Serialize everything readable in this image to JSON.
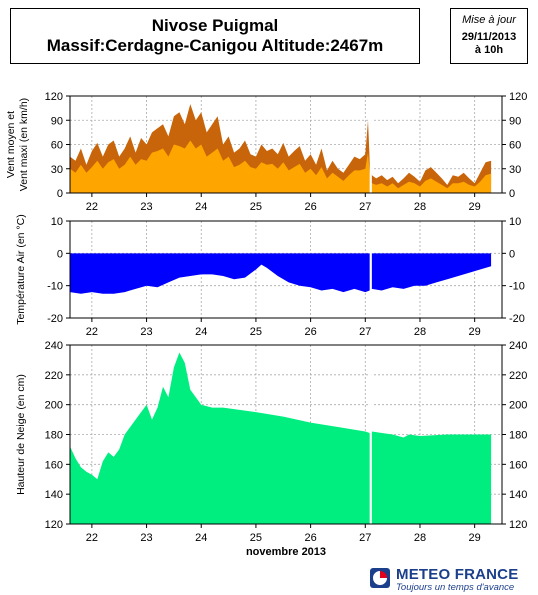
{
  "header": {
    "station": "Nivose Puigmal",
    "massif_line": "Massif:Cerdagne-Canigou Altitude:2467m",
    "update_label": "Mise à jour",
    "update_date": "29/11/2013",
    "update_time": "à 10h"
  },
  "footer": {
    "brand": "METEO FRANCE",
    "tagline": "Toujours un temps d'avance"
  },
  "colors": {
    "gust": "#c8650a",
    "mean_wind": "#ffa500",
    "temperature": "#0000ff",
    "snow": "#00ee80",
    "grid": "#aaaaaa"
  },
  "chart_data": [
    {
      "type": "area",
      "id": "wind",
      "ylabel": "Vent moyen et Vent maxi (en km/h)",
      "ylim": [
        0,
        120
      ],
      "yticks": [
        0,
        30,
        60,
        90,
        120
      ],
      "x_ticks": [
        "22",
        "23",
        "24",
        "25",
        "26",
        "27",
        "28",
        "29"
      ],
      "x_day_values": [
        22,
        23,
        24,
        25,
        26,
        27,
        28,
        29
      ],
      "xlim": [
        21.6,
        29.5
      ],
      "grid": true,
      "gap": [
        27.08,
        27.12
      ],
      "series": [
        {
          "role": "max",
          "x": [
            21.6,
            21.7,
            21.8,
            21.9,
            22.0,
            22.1,
            22.2,
            22.3,
            22.4,
            22.5,
            22.6,
            22.7,
            22.8,
            22.9,
            23.0,
            23.1,
            23.2,
            23.3,
            23.4,
            23.5,
            23.6,
            23.7,
            23.8,
            23.9,
            24.0,
            24.1,
            24.2,
            24.3,
            24.4,
            24.5,
            24.6,
            24.7,
            24.8,
            24.9,
            25.0,
            25.1,
            25.2,
            25.3,
            25.4,
            25.5,
            25.6,
            25.7,
            25.8,
            25.9,
            26.0,
            26.1,
            26.2,
            26.3,
            26.4,
            26.5,
            26.6,
            26.7,
            26.8,
            26.9,
            27.0,
            27.05,
            27.08,
            27.12,
            27.2,
            27.3,
            27.4,
            27.5,
            27.6,
            27.7,
            27.8,
            27.9,
            28.0,
            28.1,
            28.2,
            28.3,
            28.4,
            28.5,
            28.6,
            28.7,
            28.8,
            28.9,
            29.0,
            29.1,
            29.2,
            29.3
          ],
          "values": [
            45,
            40,
            55,
            35,
            52,
            62,
            45,
            60,
            65,
            45,
            55,
            70,
            50,
            68,
            60,
            75,
            80,
            85,
            70,
            95,
            100,
            85,
            110,
            90,
            100,
            75,
            85,
            95,
            60,
            70,
            50,
            55,
            65,
            48,
            45,
            60,
            52,
            55,
            48,
            62,
            45,
            52,
            58,
            40,
            48,
            35,
            55,
            28,
            40,
            30,
            25,
            35,
            45,
            42,
            48,
            90,
            40,
            22,
            18,
            22,
            16,
            20,
            12,
            18,
            25,
            20,
            14,
            28,
            32,
            25,
            18,
            10,
            22,
            20,
            25,
            18,
            12,
            25,
            38,
            40
          ]
        },
        {
          "role": "mean",
          "x": [
            21.6,
            21.7,
            21.8,
            21.9,
            22.0,
            22.1,
            22.2,
            22.3,
            22.4,
            22.5,
            22.6,
            22.7,
            22.8,
            22.9,
            23.0,
            23.1,
            23.2,
            23.3,
            23.4,
            23.5,
            23.6,
            23.7,
            23.8,
            23.9,
            24.0,
            24.1,
            24.2,
            24.3,
            24.4,
            24.5,
            24.6,
            24.7,
            24.8,
            24.9,
            25.0,
            25.1,
            25.2,
            25.3,
            25.4,
            25.5,
            25.6,
            25.7,
            25.8,
            25.9,
            26.0,
            26.1,
            26.2,
            26.3,
            26.4,
            26.5,
            26.6,
            26.7,
            26.8,
            26.9,
            27.0,
            27.05,
            27.08,
            27.12,
            27.2,
            27.3,
            27.4,
            27.5,
            27.6,
            27.7,
            27.8,
            27.9,
            28.0,
            28.1,
            28.2,
            28.3,
            28.4,
            28.5,
            28.6,
            28.7,
            28.8,
            28.9,
            29.0,
            29.1,
            29.2,
            29.3
          ],
          "values": [
            30,
            25,
            35,
            25,
            32,
            40,
            30,
            38,
            42,
            30,
            35,
            45,
            35,
            42,
            40,
            50,
            52,
            55,
            45,
            60,
            58,
            55,
            65,
            55,
            60,
            45,
            50,
            55,
            40,
            45,
            32,
            35,
            40,
            32,
            30,
            38,
            35,
            36,
            30,
            38,
            28,
            32,
            36,
            25,
            30,
            22,
            32,
            18,
            25,
            20,
            15,
            22,
            28,
            28,
            30,
            50,
            25,
            12,
            10,
            12,
            8,
            12,
            6,
            10,
            14,
            12,
            8,
            15,
            18,
            14,
            10,
            6,
            12,
            12,
            14,
            10,
            8,
            14,
            22,
            24
          ]
        }
      ]
    },
    {
      "type": "area",
      "id": "temperature",
      "ylabel": "Température Air (en °C)",
      "ylim": [
        -20,
        10
      ],
      "yticks": [
        -20,
        -10,
        0,
        10
      ],
      "x_ticks": [
        "22",
        "23",
        "24",
        "25",
        "26",
        "27",
        "28",
        "29"
      ],
      "x_day_values": [
        22,
        23,
        24,
        25,
        26,
        27,
        28,
        29
      ],
      "xlim": [
        21.6,
        29.5
      ],
      "grid": true,
      "gap": [
        27.08,
        27.12
      ],
      "series": [
        {
          "role": "temperature",
          "x": [
            21.6,
            21.8,
            22.0,
            22.2,
            22.4,
            22.6,
            22.8,
            23.0,
            23.2,
            23.4,
            23.6,
            23.8,
            24.0,
            24.2,
            24.4,
            24.6,
            24.8,
            25.0,
            25.1,
            25.2,
            25.4,
            25.6,
            25.8,
            26.0,
            26.2,
            26.4,
            26.6,
            26.8,
            27.0,
            27.08,
            27.12,
            27.3,
            27.5,
            27.7,
            27.9,
            28.1,
            28.3,
            28.5,
            28.7,
            28.9,
            29.1,
            29.3
          ],
          "values": [
            -12,
            -12.5,
            -12,
            -12.5,
            -12.5,
            -12,
            -11,
            -10,
            -10.5,
            -9,
            -7.5,
            -7,
            -6.5,
            -6.5,
            -7,
            -8,
            -7.5,
            -5,
            -3.5,
            -4.5,
            -7,
            -9,
            -10,
            -10.5,
            -11.5,
            -11,
            -12,
            -11,
            -12,
            -11.5,
            -11,
            -11.5,
            -10.5,
            -11,
            -10,
            -10,
            -9,
            -8,
            -7,
            -6,
            -5,
            -4
          ]
        }
      ]
    },
    {
      "type": "area",
      "id": "snow",
      "ylabel": "Hauteur de Neige (en cm)",
      "xlabel": "novembre 2013",
      "ylim": [
        120,
        240
      ],
      "yticks": [
        120,
        140,
        160,
        180,
        200,
        220,
        240
      ],
      "x_ticks": [
        "22",
        "23",
        "24",
        "25",
        "26",
        "27",
        "28",
        "29"
      ],
      "x_day_values": [
        22,
        23,
        24,
        25,
        26,
        27,
        28,
        29
      ],
      "xlim": [
        21.6,
        29.5
      ],
      "grid": true,
      "gap": [
        27.08,
        27.12
      ],
      "series": [
        {
          "role": "snow_depth",
          "x": [
            21.6,
            21.7,
            21.8,
            21.9,
            22.0,
            22.1,
            22.2,
            22.3,
            22.4,
            22.5,
            22.6,
            22.7,
            22.8,
            22.9,
            23.0,
            23.1,
            23.2,
            23.3,
            23.4,
            23.5,
            23.6,
            23.7,
            23.8,
            23.9,
            24.0,
            24.2,
            24.4,
            24.6,
            24.8,
            25.0,
            25.5,
            26.0,
            26.5,
            27.0,
            27.08,
            27.12,
            27.5,
            27.7,
            27.8,
            28.0,
            28.5,
            29.0,
            29.3
          ],
          "values": [
            172,
            164,
            158,
            155,
            153,
            150,
            162,
            168,
            165,
            170,
            180,
            185,
            190,
            195,
            200,
            190,
            198,
            212,
            205,
            225,
            235,
            228,
            210,
            205,
            200,
            198,
            198,
            197,
            196,
            195,
            192,
            188,
            185,
            182,
            181,
            182,
            180,
            178,
            180,
            179,
            180,
            180,
            180
          ]
        }
      ]
    }
  ]
}
